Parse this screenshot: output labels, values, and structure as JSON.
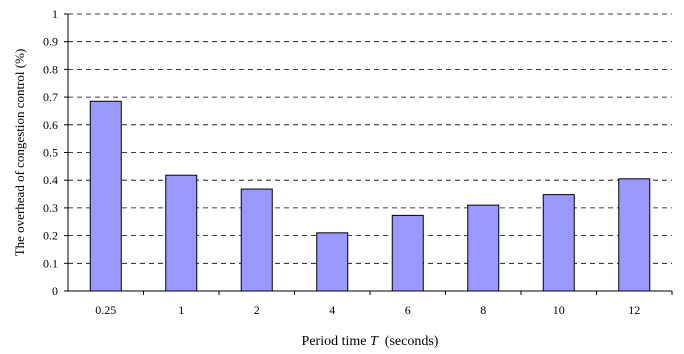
{
  "chart_data": {
    "type": "bar",
    "categories": [
      "0.25",
      "1",
      "2",
      "4",
      "6",
      "8",
      "10",
      "12"
    ],
    "values": [
      0.685,
      0.418,
      0.368,
      0.21,
      0.273,
      0.31,
      0.348,
      0.405
    ],
    "xlabel_prefix": "Period time ",
    "xlabel_var": "T",
    "xlabel_suffix": "  (seconds)",
    "ylabel": "The overhead of congestion control (%)",
    "ylim": [
      0,
      1
    ],
    "yticks": [
      "0",
      "0.1",
      "0.2",
      "0.3",
      "0.4",
      "0.5",
      "0.6",
      "0.7",
      "0.8",
      "0.9",
      "1"
    ],
    "grid": true,
    "bar_color": "#9999ff",
    "bar_edge_color": "#000000"
  }
}
